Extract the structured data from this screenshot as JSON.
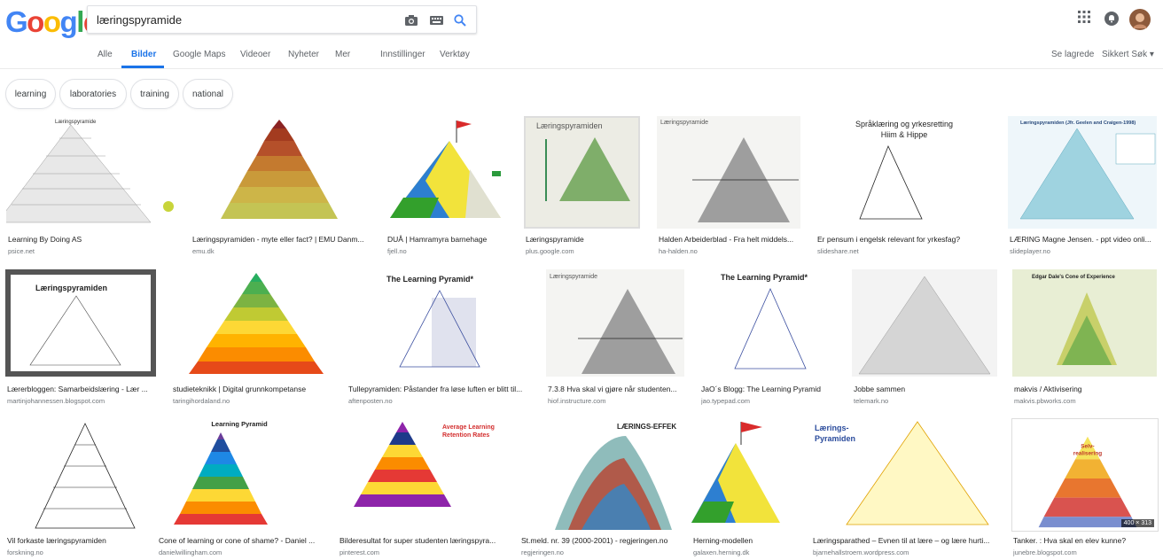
{
  "logo": {
    "letters": [
      "G",
      "o",
      "o",
      "g",
      "l",
      "e"
    ],
    "colors": [
      "#4285f4",
      "#ea4335",
      "#fbbc05",
      "#4285f4",
      "#34a853",
      "#ea4335"
    ]
  },
  "search": {
    "value": "læringspyramide"
  },
  "nav": {
    "items": [
      "Alle",
      "Bilder",
      "Google Maps",
      "Videoer",
      "Nyheter",
      "Mer",
      "Innstillinger",
      "Verktøy"
    ],
    "active": "Bilder",
    "right": [
      "Se lagrede",
      "Sikkert Søk ▾"
    ]
  },
  "chips": [
    "learning",
    "laboratories",
    "training",
    "national"
  ],
  "rows": [
    [
      {
        "title": "Learning By Doing AS",
        "source": "psice.net"
      },
      {
        "title": "Læringspyramiden - myte eller fact? | EMU Danm...",
        "source": "emu.dk"
      },
      {
        "title": "DUÅ | Hamramyra barnehage",
        "source": "fjell.no"
      },
      {
        "title": "Læringspyramide",
        "source": "plus.google.com"
      },
      {
        "title": "Halden Arbeiderblad - Fra helt middels...",
        "source": "ha-halden.no"
      },
      {
        "title": "Er pensum i engelsk relevant for yrkesfag?",
        "source": "slideshare.net"
      },
      {
        "title": "LÆRING Magne Jensen. - ppt video onli...",
        "source": "slideplayer.no"
      }
    ],
    [
      {
        "title": "Lærerbloggen: Samarbeidslæring - Lær ...",
        "source": "martinjohannessen.blogspot.com"
      },
      {
        "title": "studieteknikk | Digital grunnkompetanse",
        "source": "taringihordaland.no"
      },
      {
        "title": "Tullepyramiden: Påstander fra løse luften er blitt til...",
        "source": "aftenposten.no"
      },
      {
        "title": "7.3.8 Hva skal vi gjøre når studenten...",
        "source": "hiof.instructure.com"
      },
      {
        "title": "JaO´s Blogg: The Learning Pyramid",
        "source": "jao.typepad.com"
      },
      {
        "title": "Jobbe sammen",
        "source": "telemark.no"
      },
      {
        "title": "makvis / Aktivisering",
        "source": "makvis.pbworks.com"
      }
    ],
    [
      {
        "title": "Vil forkaste læringspyramiden",
        "source": "forskning.no"
      },
      {
        "title": "Cone of learning or cone of shame? - Daniel ...",
        "source": "danielwillingham.com"
      },
      {
        "title": "Bilderesultat for super studenten læringspyra...",
        "source": "pinterest.com"
      },
      {
        "title": "St.meld. nr. 39 (2000-2001) - regjeringen.no",
        "source": "regjeringen.no"
      },
      {
        "title": "Herning-modellen",
        "source": "galaxen.herning.dk"
      },
      {
        "title": "Læringsparathed – Evnen til at lære – og lære hurti...",
        "source": "bjarnehallstroem.wordpress.com"
      },
      {
        "title": "Tanker. : Hva skal en elev kunne?",
        "source": "junebre.blogspot.com",
        "dims": "400 × 313"
      }
    ]
  ],
  "thumb_text": {
    "r0c0": "Læringspyramide",
    "r0c3": "Læringspyramiden",
    "r0c4": "Læringspyramide",
    "r0c5a": "Språklæring og yrkesretting",
    "r0c5b": "Hiim & Hippe",
    "r0c6": "Læringspyramiden (Jfr. Geelen and Craigen-1998)",
    "r1c0": "Læringspyramiden",
    "r1c2": "The Learning Pyramid*",
    "r1c3": "Læringspyramide",
    "r1c4": "The Learning Pyramid*",
    "r1c6": "Edgar Dale's Cone of Experience",
    "r2c1": "Learning Pyramid",
    "r2c2a": "Average Learning",
    "r2c2b": "Retention Rates",
    "r2c3": "LÆRINGS-EFFEKT",
    "r2c5a": "Lærings-",
    "r2c5b": "Pyramiden",
    "r2c6a": "Selv-",
    "r2c6b": "realisering"
  },
  "colors": {
    "accent": "#1a73e8",
    "chip_border": "#dfe1e5",
    "muted": "#70757a"
  }
}
